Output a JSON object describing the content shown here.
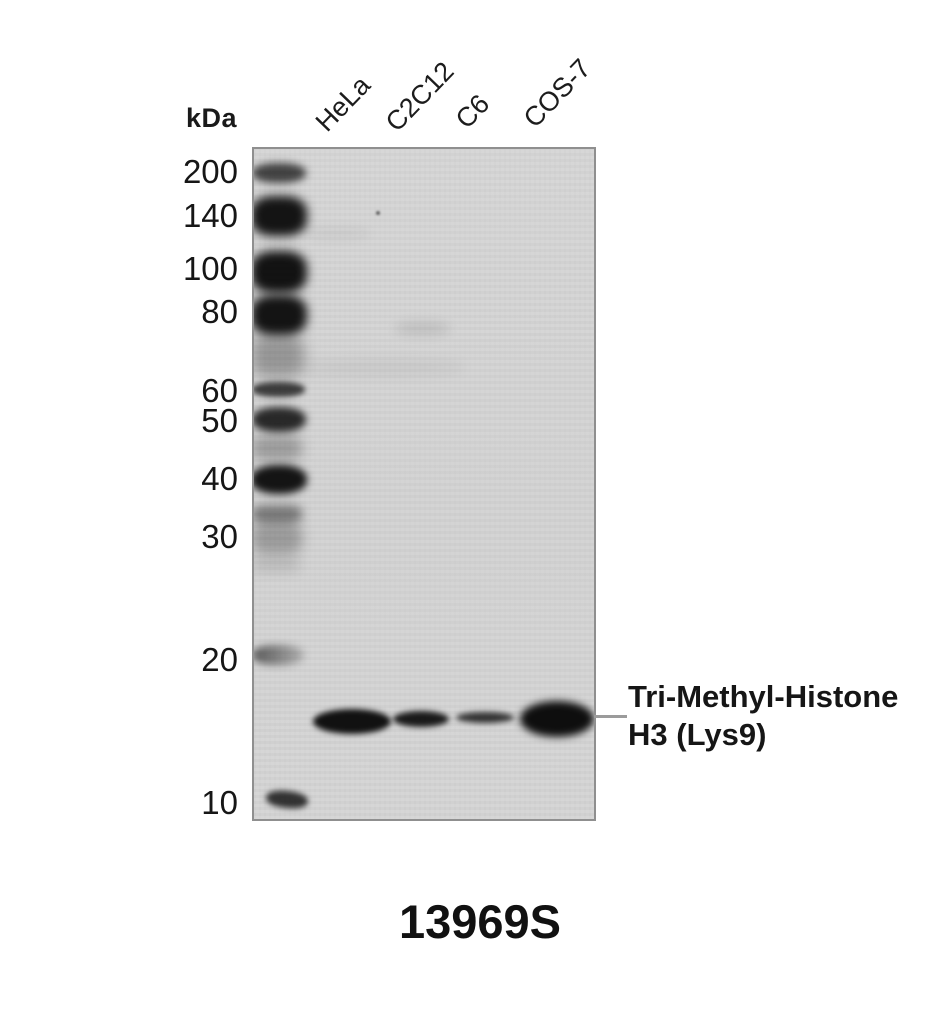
{
  "figure": {
    "technique": "western-blot",
    "unit_label": "kDa",
    "marker_values": [
      "200",
      "140",
      "100",
      "80",
      "60",
      "50",
      "40",
      "30",
      "20",
      "10"
    ],
    "lanes": [
      {
        "label": "HeLa",
        "band_intensity": "strong"
      },
      {
        "label": "C2C12",
        "band_intensity": "medium"
      },
      {
        "label": "C6",
        "band_intensity": "weak"
      },
      {
        "label": "COS-7",
        "band_intensity": "strongest"
      }
    ],
    "annotation": {
      "line1": "Tri-Methyl-Histone",
      "line2": "H3 (Lys9)"
    },
    "product_code": "13969S"
  },
  "colors": {
    "background": "#ffffff",
    "blot_background": "#d4d4d4",
    "blot_border": "#8f8f8f",
    "band": "#0a0a0a",
    "text": "#1a1a1a",
    "tick_line": "#9b9b9b"
  }
}
